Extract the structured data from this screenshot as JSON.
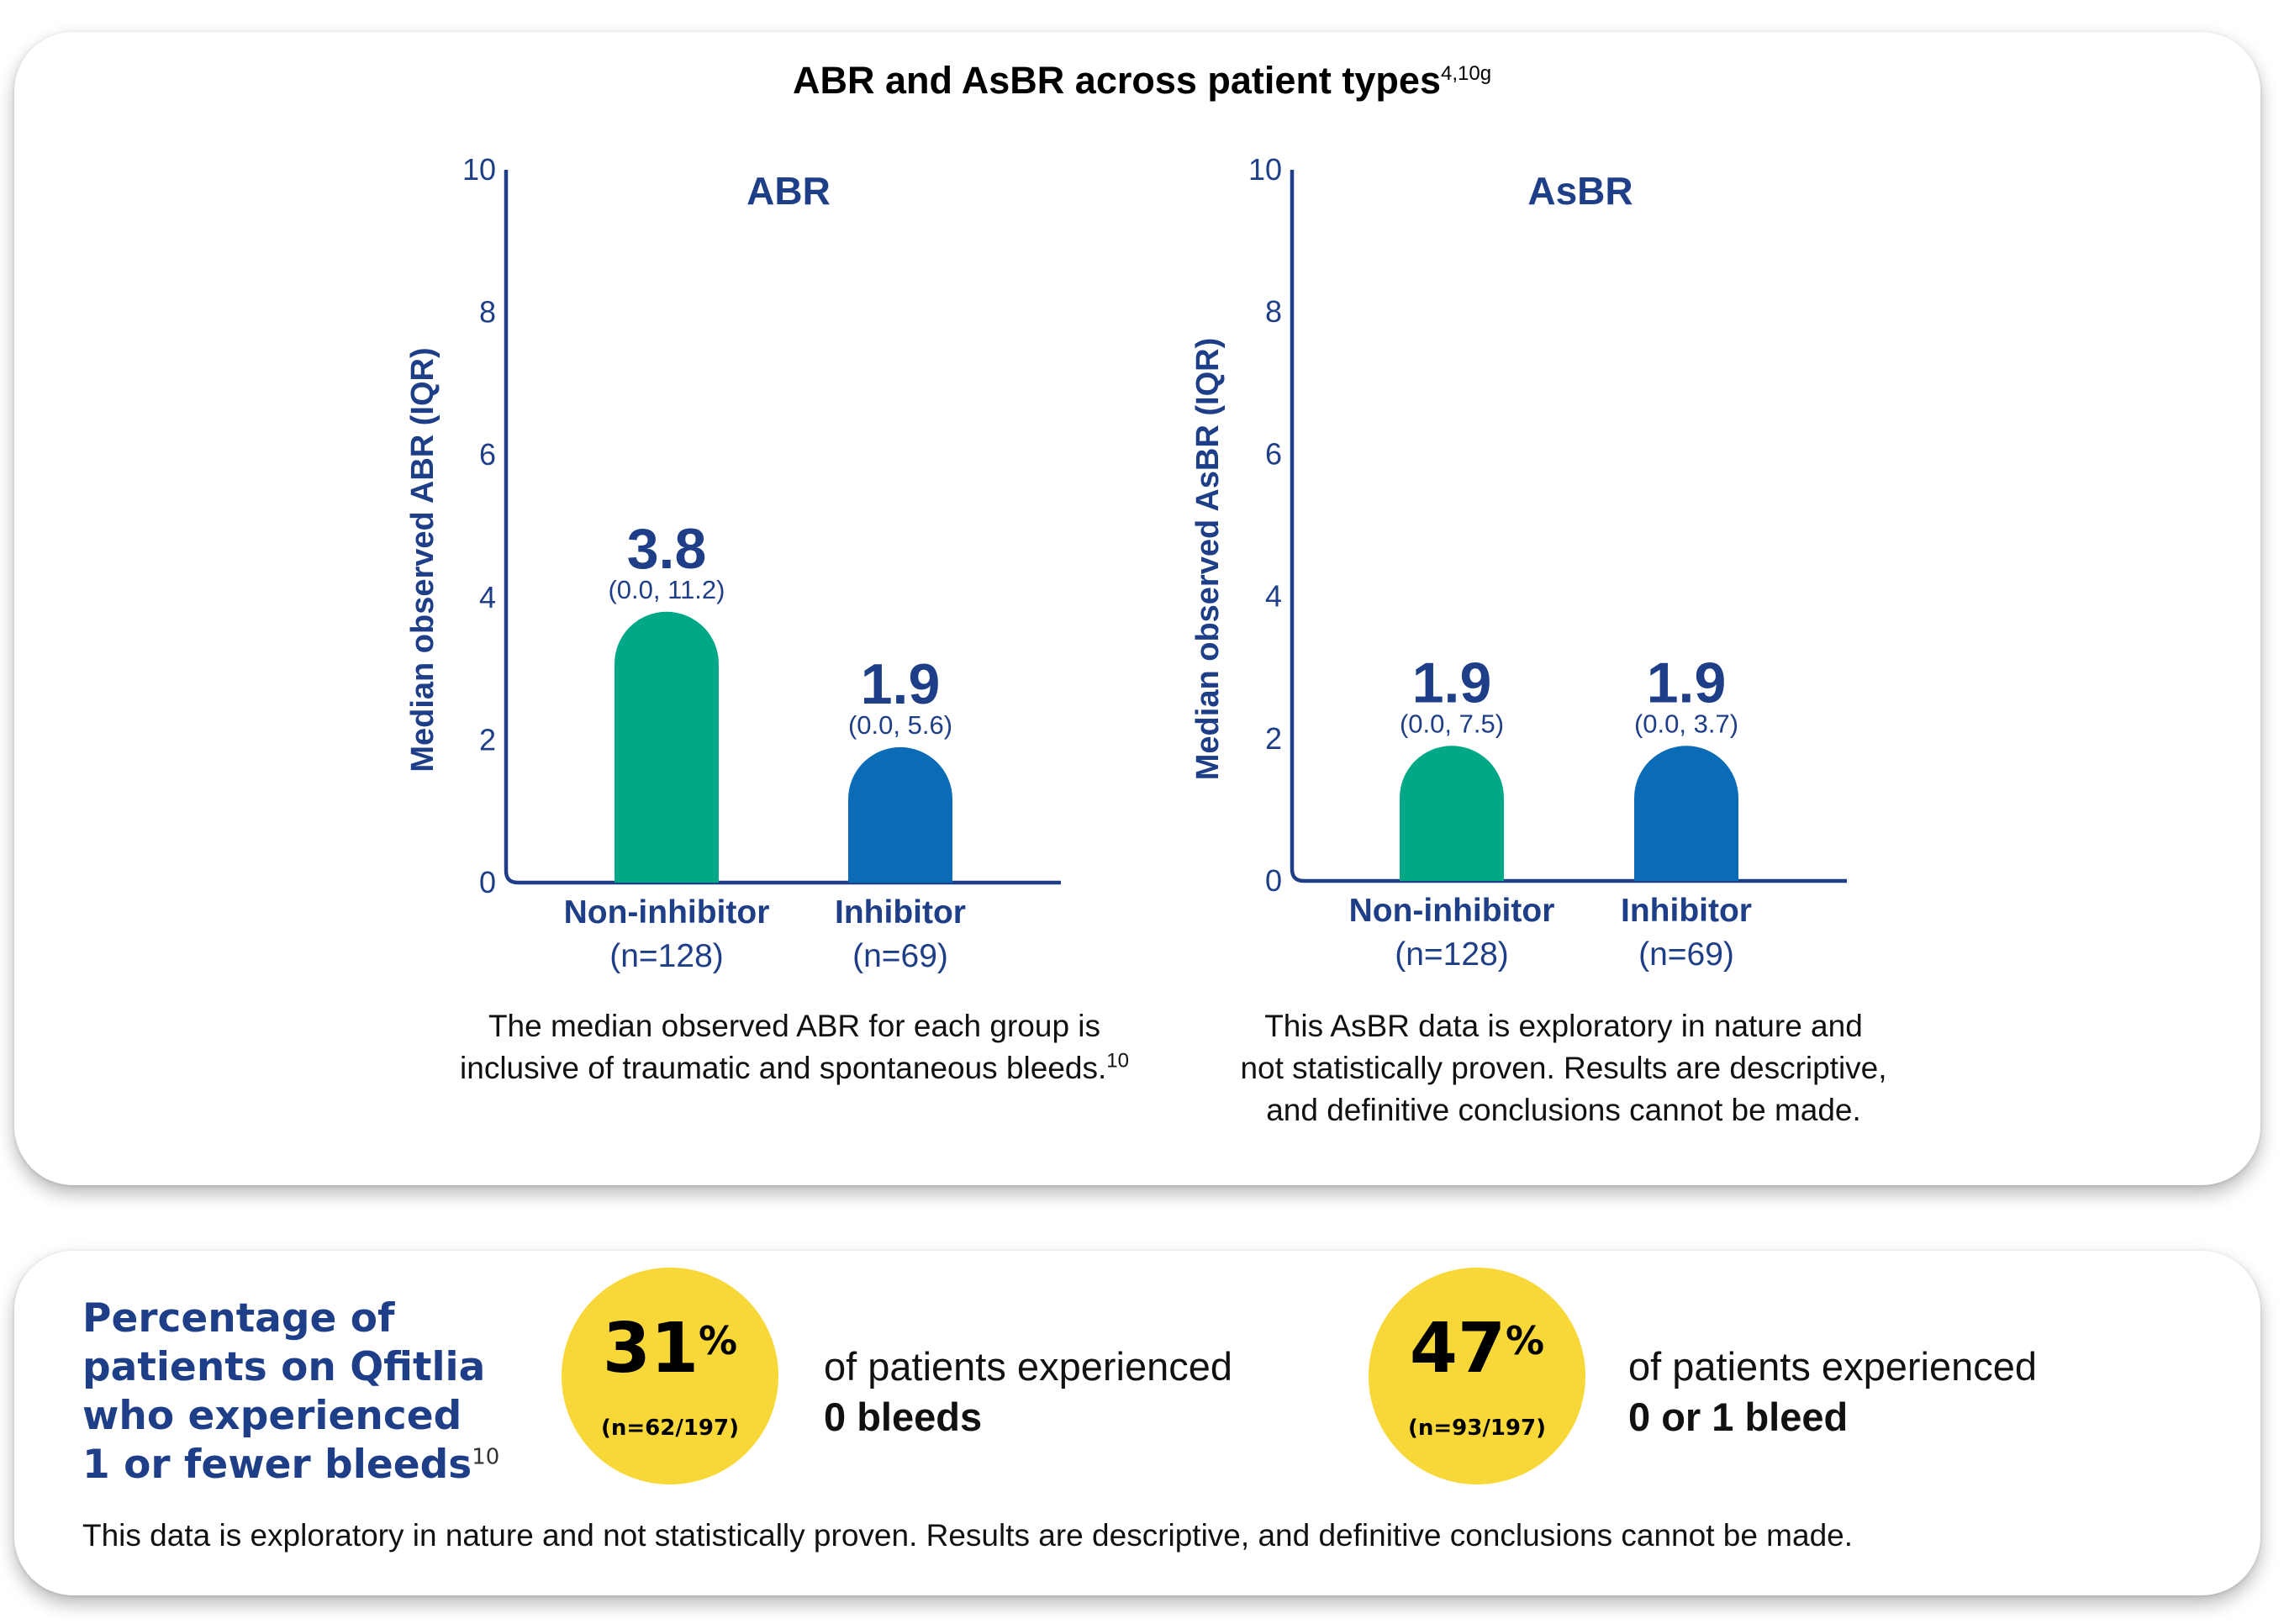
{
  "header": {
    "title": "ABR and AsBR across patient types",
    "title_sup": "4,10g"
  },
  "colors": {
    "navy": "#1e3f87",
    "non_inhibitor": "#00a887",
    "inhibitor": "#0a6cb7",
    "highlight": "#f8d838"
  },
  "chart_data": [
    {
      "type": "bar",
      "title": "ABR",
      "ylabel": "Median observed ABR (IQR)",
      "ylim": [
        0,
        10
      ],
      "yticks": [
        "0",
        "2",
        "4",
        "6",
        "8",
        "10"
      ],
      "categories": [
        "Non-inhibitor",
        "Inhibitor"
      ],
      "n_labels": [
        "(n=128)",
        "(n=69)"
      ],
      "values": [
        3.8,
        1.9
      ],
      "value_labels": [
        "3.8",
        "1.9"
      ],
      "iqr_labels": [
        "(0.0, 11.2)",
        "(0.0, 5.6)"
      ],
      "grid": false
    },
    {
      "type": "bar",
      "title": "AsBR",
      "ylabel": "Median observed AsBR (IQR)",
      "ylim": [
        0,
        10
      ],
      "yticks": [
        "0",
        "2",
        "4",
        "6",
        "8",
        "10"
      ],
      "categories": [
        "Non-inhibitor",
        "Inhibitor"
      ],
      "n_labels": [
        "(n=128)",
        "(n=69)"
      ],
      "values": [
        1.9,
        1.9
      ],
      "value_labels": [
        "1.9",
        "1.9"
      ],
      "iqr_labels": [
        "(0.0, 7.5)",
        "(0.0, 3.7)"
      ],
      "grid": false
    }
  ],
  "notes": {
    "abr_line1": "The median observed ABR for each group is",
    "abr_line2": "inclusive of traumatic and spontaneous bleeds.",
    "abr_sup": "10",
    "asbr_line1": "This AsBR data is exploratory in nature and",
    "asbr_line2": "not statistically proven. Results are descriptive,",
    "asbr_line3": "and definitive conclusions cannot be made."
  },
  "percentages": {
    "title_line1": "Percentage of",
    "title_line2": "patients on Qfitlia",
    "title_line3": "who experienced",
    "title_line4": "1 or fewer bleeds",
    "title_sup": "10",
    "stat1": {
      "value": "31",
      "unit": "%",
      "n": "(n=62/197)",
      "text": "of patients experienced",
      "strong": "0 bleeds"
    },
    "stat2": {
      "value": "47",
      "unit": "%",
      "n": "(n=93/197)",
      "text": "of patients experienced",
      "strong": "0 or 1 bleed"
    },
    "disclaimer": "This data is exploratory in nature and not statistically proven. Results are descriptive, and definitive conclusions cannot be made."
  }
}
